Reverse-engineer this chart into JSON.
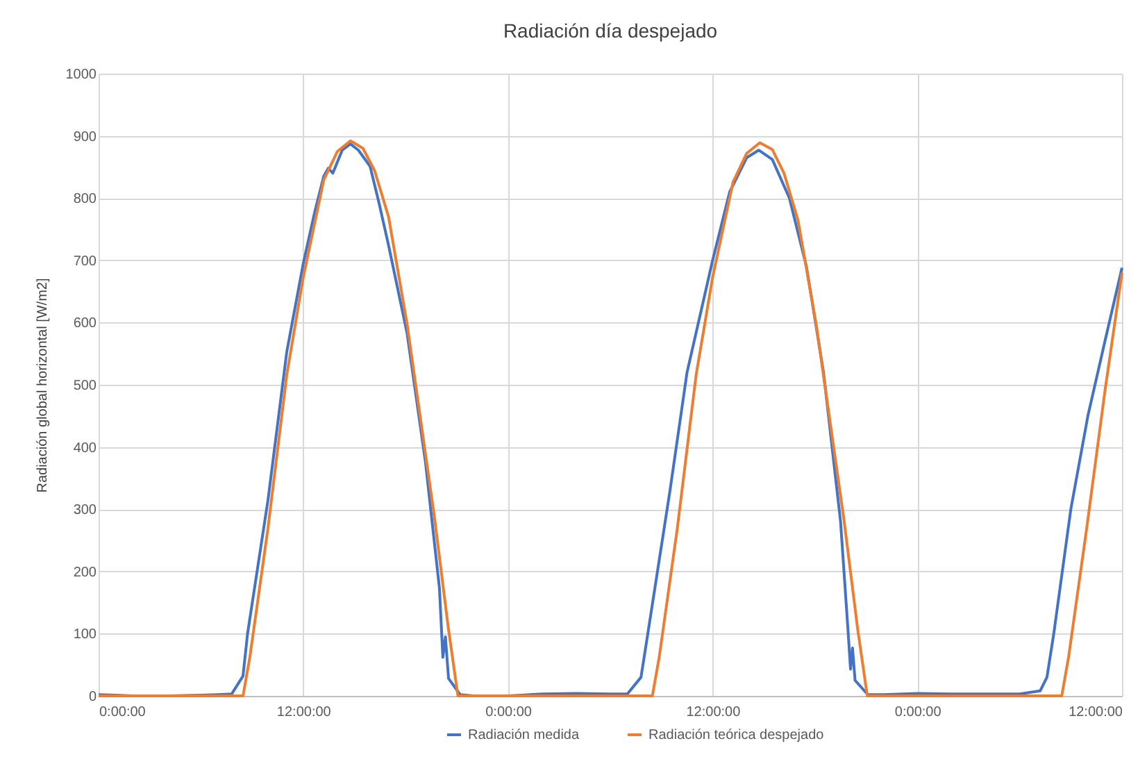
{
  "chart_data": {
    "type": "line",
    "title": "Radiación día despejado",
    "ylabel": "Radiación global horizontal [W/m2]",
    "xlim": [
      "--01-01T00:00",
      "--01-03T12:00"
    ],
    "xticks": [
      {
        "value": "--01-01T00:00",
        "label": "0:00:00"
      },
      {
        "value": "--01-01T12:00",
        "label": "12:00:00"
      },
      {
        "value": "--01-02T00:00",
        "label": "0:00:00"
      },
      {
        "value": "--01-02T12:00",
        "label": "12:00:00"
      },
      {
        "value": "--01-03T00:00",
        "label": "0:00:00"
      },
      {
        "value": "--01-03T12:00",
        "label": "12:00:00"
      }
    ],
    "ylim": [
      0,
      1000
    ],
    "yticks": [
      0,
      100,
      200,
      300,
      400,
      500,
      600,
      700,
      800,
      900,
      1000
    ],
    "grid": true,
    "legend": "bottom",
    "marker": "none",
    "line_style": "solid",
    "series": [
      {
        "name": "Radiación medida",
        "color": "#4472c4",
        "x": [
          "--01-01T00:00",
          "--01-01T01:00",
          "--01-01T02:00",
          "--01-01T04:00",
          "--01-01T06:00",
          "--01-01T07:00",
          "--01-01T07:48",
          "--01-01T08:28",
          "--01-01T08:44",
          "--01-01T09:56",
          "--01-01T11:02",
          "--01-01T12:00",
          "--01-01T12:40",
          "--01-01T13:12",
          "--01-01T13:28",
          "--01-01T13:44",
          "--01-01T14:17",
          "--01-01T14:46",
          "--01-01T15:14",
          "--01-01T15:55",
          "--01-01T16:27",
          "--01-01T17:00",
          "--01-01T18:05",
          "--01-01T19:10",
          "--01-01T19:59",
          "--01-01T20:11",
          "--01-01T20:20",
          "--01-01T20:31",
          "--01-01T21:12",
          "--01-01T22:00",
          "--01-02T00:00",
          "--01-02T02:00",
          "--01-02T04:00",
          "--01-02T06:00",
          "--01-02T07:00",
          "--01-02T07:48",
          "--01-02T08:12",
          "--01-02T09:30",
          "--01-02T10:30",
          "--01-02T12:00",
          "--01-02T13:00",
          "--01-02T14:00",
          "--01-02T14:42",
          "--01-02T15:30",
          "--01-02T16:30",
          "--01-02T17:30",
          "--01-02T18:30",
          "--01-02T19:30",
          "--01-02T19:57",
          "--01-02T20:05",
          "--01-02T20:12",
          "--01-02T20:21",
          "--01-02T21:06",
          "--01-02T22:00",
          "--01-03T00:00",
          "--01-03T02:00",
          "--01-03T04:00",
          "--01-03T06:00",
          "--01-03T07:12",
          "--01-03T07:36",
          "--01-03T08:00",
          "--01-03T09:00",
          "--01-03T10:00",
          "--01-03T11:00",
          "--01-03T12:00"
        ],
        "values": [
          2,
          1,
          0,
          0,
          1,
          2,
          3,
          32,
          100,
          315,
          553,
          695,
          777,
          835,
          848,
          840,
          877,
          887,
          877,
          851,
          791,
          724,
          583,
          375,
          173,
          62,
          95,
          28,
          2,
          0,
          0,
          3,
          4,
          3,
          3,
          30,
          100,
          330,
          520,
          700,
          810,
          865,
          877,
          862,
          800,
          690,
          520,
          280,
          100,
          43,
          77,
          25,
          2,
          2,
          4,
          3,
          3,
          3,
          8,
          30,
          100,
          300,
          450,
          570,
          688
        ]
      },
      {
        "name": "Radiación teórica despejado",
        "color": "#ed7d31",
        "x": [
          "--01-01T00:00",
          "--01-01T08:28",
          "--01-01T08:52",
          "--01-01T09:56",
          "--01-01T11:02",
          "--01-01T12:00",
          "--01-01T13:12",
          "--01-01T14:00",
          "--01-01T14:46",
          "--01-01T15:30",
          "--01-01T16:11",
          "--01-01T17:00",
          "--01-01T18:05",
          "--01-01T19:42",
          "--01-01T20:30",
          "--01-01T21:04",
          "--01-02T08:28",
          "--01-02T08:52",
          "--01-02T09:56",
          "--01-02T11:02",
          "--01-02T12:00",
          "--01-02T13:12",
          "--01-02T14:00",
          "--01-02T14:46",
          "--01-02T15:30",
          "--01-02T16:11",
          "--01-02T17:00",
          "--01-02T18:05",
          "--01-02T19:42",
          "--01-02T20:30",
          "--01-02T21:04",
          "--01-03T08:28",
          "--01-03T08:52",
          "--01-03T09:56",
          "--01-03T11:00",
          "--01-03T12:00"
        ],
        "values": [
          0,
          0,
          62,
          270,
          516,
          673,
          829,
          875,
          892,
          880,
          844,
          770,
          598,
          285,
          110,
          0,
          0,
          62,
          270,
          516,
          673,
          826,
          872,
          889,
          878,
          840,
          765,
          595,
          283,
          108,
          0,
          0,
          62,
          270,
          490,
          680
        ]
      }
    ]
  }
}
